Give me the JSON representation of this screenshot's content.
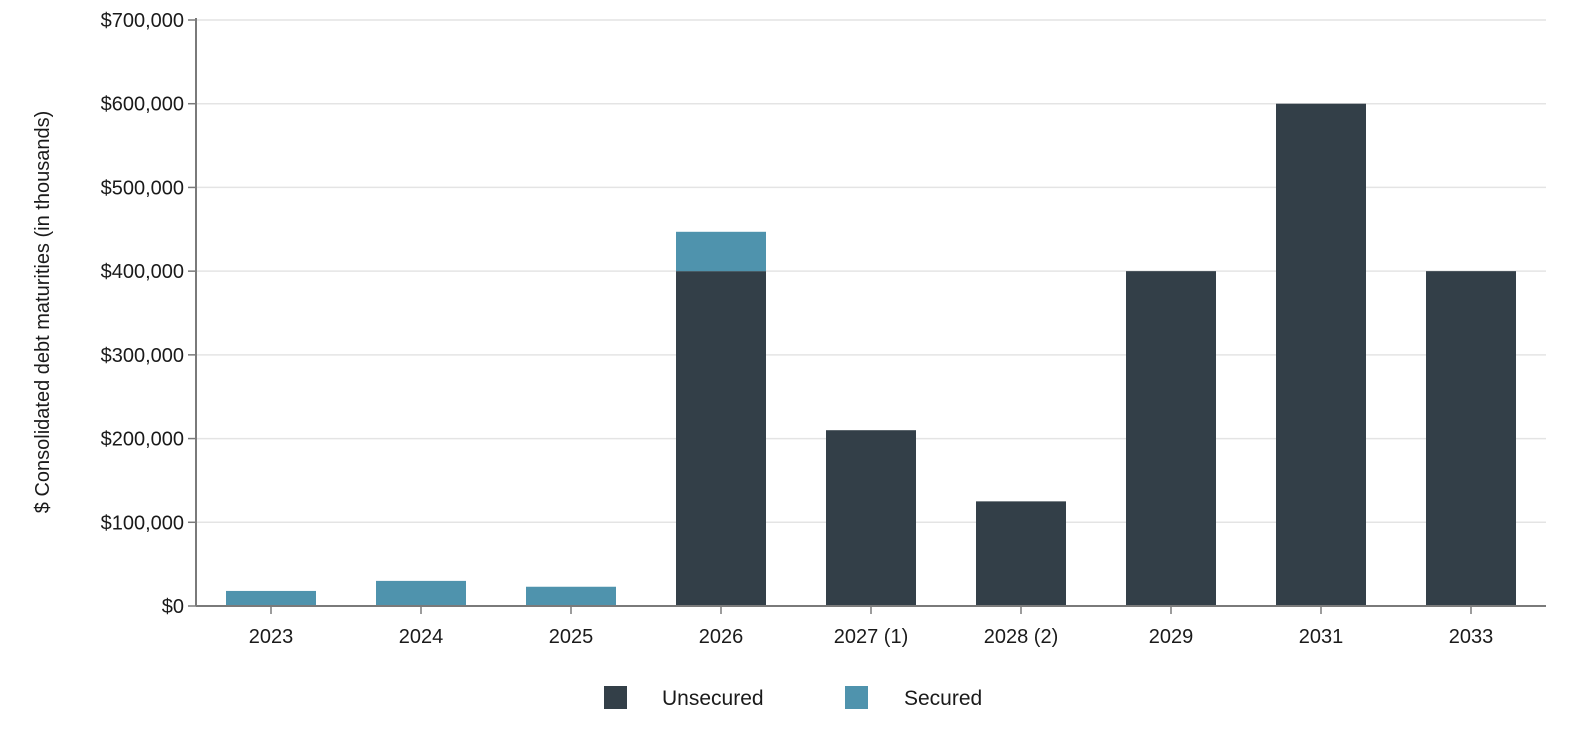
{
  "chart_data": {
    "type": "bar",
    "stacked": true,
    "categories": [
      "2023",
      "2024",
      "2025",
      "2026",
      "2027 (1)",
      "2028 (2)",
      "2029",
      "2031",
      "2033"
    ],
    "series": [
      {
        "name": "Unsecured",
        "color": "#333f48",
        "values": [
          0,
          0,
          0,
          400000,
          210000,
          125000,
          400000,
          600000,
          400000
        ]
      },
      {
        "name": "Secured",
        "color": "#4f93ad",
        "values": [
          18000,
          30000,
          23000,
          47000,
          0,
          0,
          0,
          0,
          0
        ]
      }
    ],
    "ylabel": "$ Consolidated debt maturities (in thousands)",
    "xlabel": "",
    "ylim": [
      0,
      700000
    ],
    "yticks": [
      0,
      100000,
      200000,
      300000,
      400000,
      500000,
      600000,
      700000
    ],
    "ytick_labels": [
      "$0",
      "$100,000",
      "$200,000",
      "$300,000",
      "$400,000",
      "$500,000",
      "$600,000",
      "$700,000"
    ],
    "grid": "horizontal",
    "legend_position": "bottom-center"
  }
}
